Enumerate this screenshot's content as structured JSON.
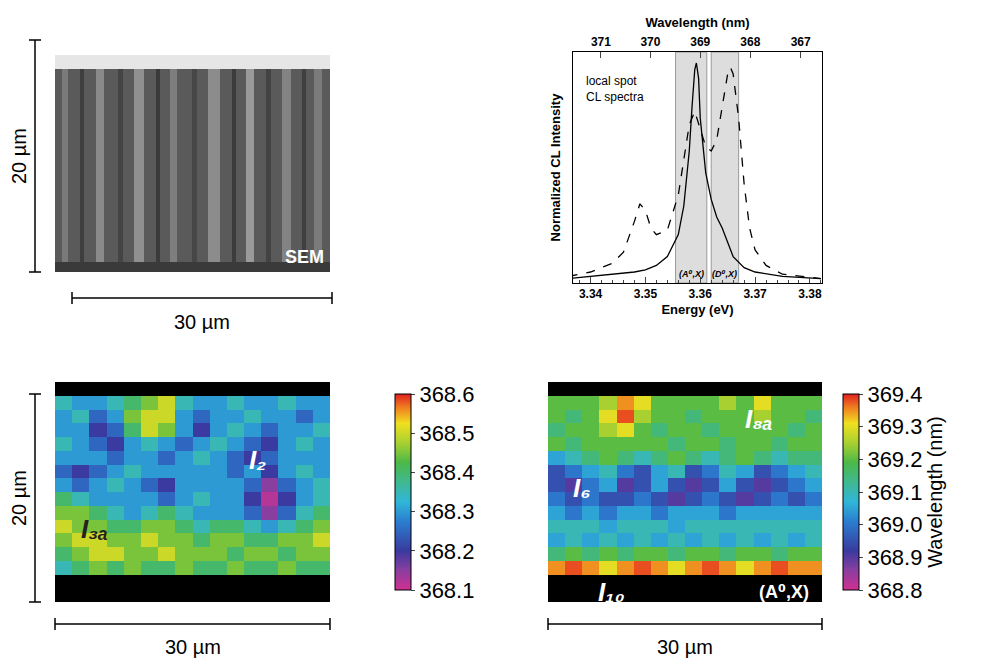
{
  "sem_panel": {
    "label": "SEM",
    "scale_bars": [
      "20 µm",
      "30 µm"
    ]
  },
  "chart_data": [
    {
      "type": "line",
      "x_title": "Energy (eV)",
      "x2_title": "Wavelength (nm)",
      "y_title": "Normalized CL Intensity",
      "annotation": [
        "local spot",
        "CL spectra"
      ],
      "xlim": [
        3.3368,
        3.3822
      ],
      "xticks": [
        3.34,
        3.35,
        3.36,
        3.37,
        3.38
      ],
      "x2ticks": [
        371,
        370,
        369,
        368,
        367
      ],
      "ylim": [
        0,
        1.05
      ],
      "tick_labels": "x",
      "grid": false,
      "bands": [
        {
          "label": "(A⁰,X)",
          "x0": 3.3555,
          "x1": 3.3612
        },
        {
          "label": "(D⁰,X)",
          "x0": 3.362,
          "x1": 3.367
        }
      ],
      "series": [
        {
          "color": "#000000",
          "line_style": "solid",
          "x": [
            3.336,
            3.34,
            3.345,
            3.348,
            3.35,
            3.352,
            3.354,
            3.356,
            3.357,
            3.358,
            3.3585,
            3.359,
            3.3593,
            3.3597,
            3.36,
            3.361,
            3.362,
            3.363,
            3.364,
            3.365,
            3.366,
            3.368,
            3.37,
            3.375,
            3.382
          ],
          "values": [
            0.02,
            0.03,
            0.04,
            0.05,
            0.06,
            0.08,
            0.12,
            0.22,
            0.35,
            0.6,
            0.8,
            0.97,
            1.0,
            0.93,
            0.75,
            0.5,
            0.38,
            0.3,
            0.25,
            0.18,
            0.12,
            0.07,
            0.05,
            0.03,
            0.02
          ]
        },
        {
          "color": "#000000",
          "line_style": "dashed",
          "x": [
            3.336,
            3.34,
            3.344,
            3.346,
            3.348,
            3.349,
            3.35,
            3.351,
            3.352,
            3.354,
            3.356,
            3.357,
            3.358,
            3.359,
            3.36,
            3.361,
            3.362,
            3.363,
            3.364,
            3.365,
            3.3655,
            3.366,
            3.367,
            3.368,
            3.369,
            3.37,
            3.372,
            3.375,
            3.382
          ],
          "values": [
            0.03,
            0.05,
            0.09,
            0.14,
            0.28,
            0.36,
            0.33,
            0.25,
            0.22,
            0.24,
            0.4,
            0.55,
            0.72,
            0.78,
            0.7,
            0.62,
            0.6,
            0.65,
            0.8,
            0.95,
            0.98,
            0.95,
            0.75,
            0.45,
            0.25,
            0.15,
            0.08,
            0.04,
            0.02
          ]
        }
      ]
    },
    {
      "type": "heatmap",
      "tick_labels": false,
      "scale_bars": [
        "20 µm",
        "30 µm"
      ],
      "color_range": [
        368.1,
        368.6
      ],
      "color_ticks": [
        368.1,
        368.2,
        368.3,
        368.4,
        368.5,
        368.6
      ],
      "labels": [
        {
          "text": "I₂",
          "x": 11.3,
          "y": 5.2,
          "color": "#ffffff"
        },
        {
          "text": "I₃ₐ",
          "x": 1.8,
          "y": 10.2,
          "color": "#222222"
        }
      ],
      "cells": [
        [
          null,
          null,
          null,
          null,
          null,
          null,
          null,
          null,
          null,
          null,
          null,
          null,
          null,
          null,
          null,
          null
        ],
        [
          368.35,
          368.3,
          368.3,
          368.35,
          368.4,
          368.45,
          368.5,
          368.35,
          368.3,
          368.3,
          368.35,
          368.3,
          368.3,
          368.35,
          368.3,
          368.3
        ],
        [
          368.3,
          368.35,
          368.25,
          368.3,
          368.45,
          368.5,
          368.5,
          368.3,
          368.25,
          368.3,
          368.3,
          368.35,
          368.3,
          368.3,
          368.25,
          368.3
        ],
        [
          368.3,
          368.3,
          368.2,
          368.25,
          368.4,
          368.5,
          368.45,
          368.3,
          368.2,
          368.3,
          368.35,
          368.3,
          368.25,
          368.3,
          368.3,
          368.35
        ],
        [
          368.35,
          368.3,
          368.25,
          368.2,
          368.3,
          368.35,
          368.3,
          368.25,
          368.3,
          368.35,
          368.3,
          368.25,
          368.2,
          368.3,
          368.35,
          368.3
        ],
        [
          368.3,
          368.3,
          368.3,
          368.25,
          368.3,
          368.3,
          368.25,
          368.3,
          368.35,
          368.3,
          368.25,
          368.2,
          368.25,
          368.3,
          368.3,
          368.3
        ],
        [
          368.25,
          368.2,
          368.25,
          368.3,
          368.35,
          368.3,
          368.3,
          368.3,
          368.3,
          368.3,
          368.25,
          368.3,
          368.2,
          368.3,
          368.35,
          368.3
        ],
        [
          368.3,
          368.25,
          368.3,
          368.35,
          368.3,
          368.25,
          368.2,
          368.3,
          368.3,
          368.3,
          368.3,
          368.25,
          368.15,
          368.25,
          368.3,
          368.35
        ],
        [
          368.4,
          368.35,
          368.3,
          368.3,
          368.3,
          368.3,
          368.25,
          368.3,
          368.35,
          368.3,
          368.3,
          368.2,
          368.12,
          368.2,
          368.3,
          368.35
        ],
        [
          368.45,
          368.45,
          368.4,
          368.35,
          368.3,
          368.35,
          368.4,
          368.35,
          368.3,
          368.3,
          368.3,
          368.25,
          368.15,
          368.25,
          368.35,
          368.4
        ],
        [
          368.5,
          368.45,
          368.45,
          368.4,
          368.4,
          368.45,
          368.45,
          368.4,
          368.35,
          368.4,
          368.4,
          368.35,
          368.3,
          368.35,
          368.4,
          368.45
        ],
        [
          368.45,
          368.5,
          368.5,
          368.45,
          368.45,
          368.5,
          368.45,
          368.45,
          368.4,
          368.45,
          368.45,
          368.4,
          368.4,
          368.45,
          368.45,
          368.5
        ],
        [
          368.4,
          368.45,
          368.5,
          368.5,
          368.45,
          368.45,
          368.5,
          368.45,
          368.45,
          368.45,
          368.4,
          368.45,
          368.45,
          368.4,
          368.45,
          368.45
        ],
        [
          368.35,
          368.4,
          368.45,
          368.4,
          368.45,
          368.4,
          368.4,
          368.45,
          368.4,
          368.4,
          368.45,
          368.4,
          368.4,
          368.45,
          368.4,
          368.4
        ],
        [
          null,
          null,
          null,
          null,
          null,
          null,
          null,
          null,
          null,
          null,
          null,
          null,
          null,
          null,
          null,
          null
        ],
        [
          null,
          null,
          null,
          null,
          null,
          null,
          null,
          null,
          null,
          null,
          null,
          null,
          null,
          null,
          null,
          null
        ]
      ]
    },
    {
      "type": "heatmap",
      "tick_labels": false,
      "scale_bars": [
        "30 µm"
      ],
      "colorbar_title": "Wavelength (nm)",
      "color_range": [
        368.8,
        369.4
      ],
      "color_ticks": [
        368.8,
        368.9,
        {
          "value": 369,
          "label": "369.0"
        },
        369.1,
        369.2,
        369.3,
        369.4
      ],
      "labels": [
        {
          "text": "I₈ₐ",
          "x": 11.8,
          "y": 2.2,
          "color": "#ffffff"
        },
        {
          "text": "I₆",
          "x": 1.5,
          "y": 7.2,
          "color": "#ffffff"
        },
        {
          "text": "I₁₀",
          "x": 3.2,
          "y": 14.8,
          "color": "#ffffff"
        },
        {
          "text": "(A⁰,X)",
          "x": 13.3,
          "y": 14.8,
          "color": "#ffffff"
        }
      ],
      "cells": [
        [
          null,
          null,
          null,
          null,
          null,
          null,
          null,
          null,
          null,
          null,
          null,
          null,
          null,
          null,
          null,
          null
        ],
        [
          369.2,
          369.2,
          369.2,
          369.25,
          369.35,
          369.3,
          369.2,
          369.2,
          369.2,
          369.2,
          369.25,
          369.2,
          369.3,
          369.2,
          369.2,
          369.2
        ],
        [
          369.2,
          369.15,
          369.2,
          369.3,
          369.38,
          369.25,
          369.2,
          369.2,
          369.15,
          369.2,
          369.2,
          369.2,
          369.25,
          369.2,
          369.2,
          369.15
        ],
        [
          369.15,
          369.2,
          369.2,
          369.25,
          369.3,
          369.2,
          369.15,
          369.2,
          369.2,
          369.15,
          369.2,
          369.2,
          369.2,
          369.2,
          369.15,
          369.2
        ],
        [
          369.2,
          369.15,
          369.2,
          369.2,
          369.2,
          369.2,
          369.2,
          369.15,
          369.2,
          369.2,
          369.15,
          369.2,
          369.2,
          369.15,
          369.2,
          369.2
        ],
        [
          369.05,
          369.1,
          369.15,
          369.2,
          369.15,
          369.1,
          369.15,
          369.2,
          369.15,
          369.1,
          369.15,
          369.2,
          369.15,
          369.1,
          369.15,
          369.15
        ],
        [
          368.95,
          369.0,
          369.05,
          369.1,
          369.0,
          368.95,
          369.05,
          369.1,
          368.95,
          369.0,
          369.1,
          369.05,
          368.95,
          369.0,
          369.05,
          369.1
        ],
        [
          368.95,
          368.9,
          369.0,
          369.05,
          368.9,
          368.95,
          369.05,
          368.95,
          368.9,
          368.95,
          369.05,
          368.95,
          368.9,
          368.95,
          369.0,
          369.05
        ],
        [
          369.0,
          368.95,
          369.0,
          368.95,
          368.95,
          369.0,
          368.95,
          368.9,
          368.95,
          369.0,
          368.95,
          368.9,
          368.95,
          369.0,
          368.95,
          369.0
        ],
        [
          369.05,
          369.0,
          369.05,
          369.0,
          369.05,
          369.05,
          369.0,
          369.05,
          369.05,
          369.05,
          369.0,
          369.05,
          369.05,
          369.05,
          369.05,
          369.05
        ],
        [
          369.1,
          369.1,
          369.1,
          369.05,
          369.1,
          369.1,
          369.1,
          369.05,
          369.1,
          369.1,
          369.1,
          369.1,
          369.1,
          369.1,
          369.1,
          369.1
        ],
        [
          369.05,
          369.1,
          369.05,
          369.1,
          369.05,
          369.1,
          369.05,
          369.1,
          369.05,
          369.1,
          369.05,
          369.1,
          369.05,
          369.1,
          369.05,
          369.1
        ],
        [
          369.15,
          369.2,
          369.15,
          369.2,
          369.15,
          369.2,
          369.2,
          369.15,
          369.2,
          369.2,
          369.15,
          369.2,
          369.2,
          369.15,
          369.2,
          369.2
        ],
        [
          369.35,
          369.38,
          369.35,
          369.3,
          369.35,
          369.38,
          369.35,
          369.3,
          369.35,
          369.38,
          369.35,
          369.3,
          369.35,
          369.38,
          369.35,
          369.35
        ],
        [
          null,
          null,
          null,
          null,
          null,
          null,
          null,
          null,
          null,
          null,
          null,
          null,
          null,
          null,
          null,
          null
        ],
        [
          null,
          null,
          null,
          null,
          null,
          null,
          null,
          null,
          null,
          null,
          null,
          null,
          null,
          null,
          null,
          null
        ]
      ]
    }
  ]
}
